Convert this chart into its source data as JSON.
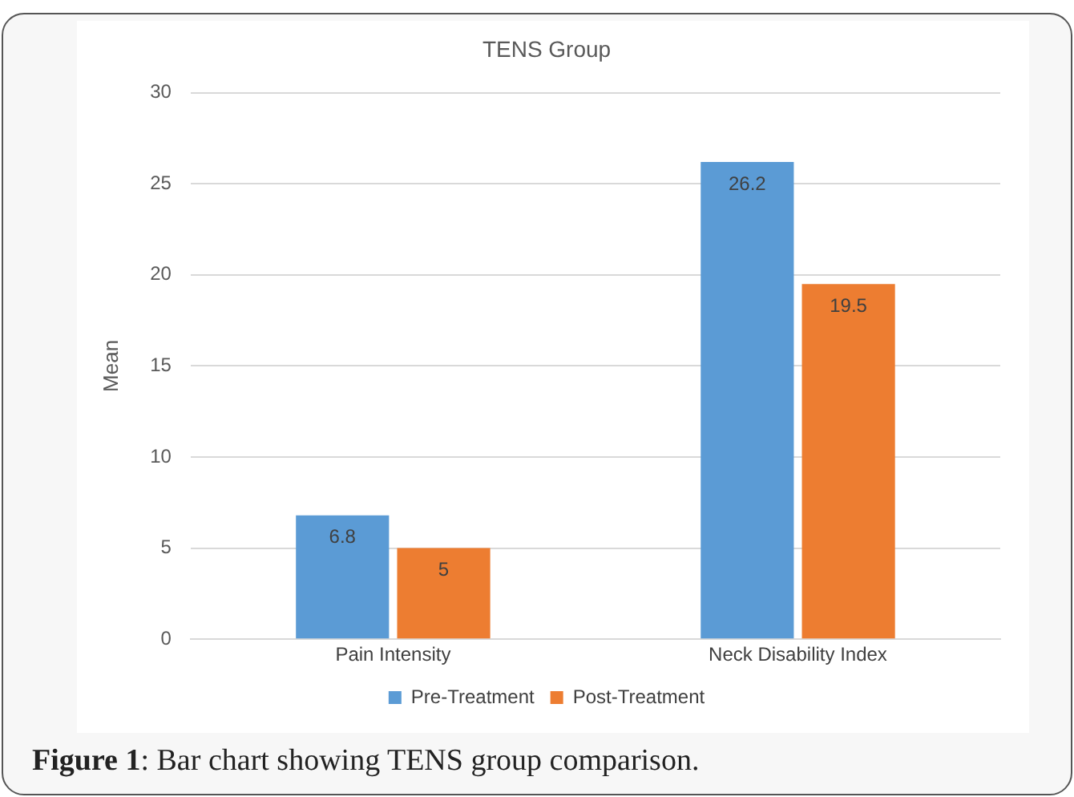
{
  "chart_data": {
    "type": "bar",
    "title": "TENS Group",
    "ylabel": "Mean",
    "categories": [
      "Pain Intensity",
      "Neck Disability Index"
    ],
    "series": [
      {
        "name": "Pre-Treatment",
        "color": "#5b9bd5",
        "values": [
          6.8,
          26.2
        ]
      },
      {
        "name": "Post-Treatment",
        "color": "#ed7d31",
        "values": [
          5,
          19.5
        ]
      }
    ],
    "ylim": [
      0,
      30
    ],
    "yticks": [
      0,
      5,
      10,
      15,
      20,
      25,
      30
    ],
    "grid": "y",
    "legend": "bottom",
    "data_labels": true,
    "annotations": [
      "Figure 1: Bar chart showing TENS group comparison."
    ]
  }
}
